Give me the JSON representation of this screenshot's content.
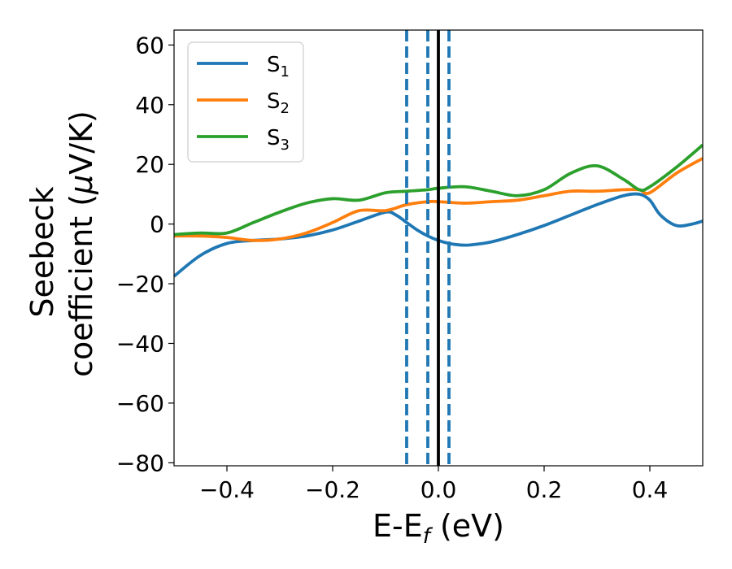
{
  "chart_data": {
    "type": "line",
    "xlabel": {
      "main": "E-E",
      "sub": "f",
      "rest": " (eV)"
    },
    "ylabel": {
      "line1": "Seebeck",
      "line2_pre": "coefficient  (",
      "mu": "μ",
      "line2_post": "V/K)"
    },
    "xlim": [
      -0.5,
      0.5
    ],
    "ylim": [
      -81,
      65
    ],
    "xticks": [
      -0.4,
      -0.2,
      0.0,
      0.2,
      0.4
    ],
    "xtick_labels": [
      "−0.4",
      "−0.2",
      "0.0",
      "0.2",
      "0.4"
    ],
    "yticks": [
      -80,
      -60,
      -40,
      -20,
      0,
      20,
      40,
      60
    ],
    "ytick_labels": [
      "−80",
      "−60",
      "−40",
      "−20",
      "0",
      "20",
      "40",
      "60"
    ],
    "legend_position": "top-left",
    "series": [
      {
        "name": "S",
        "subscript": "1",
        "color": "#1f77b4",
        "x": [
          -0.5,
          -0.45,
          -0.4,
          -0.35,
          -0.3,
          -0.25,
          -0.2,
          -0.15,
          -0.1,
          -0.08,
          -0.06,
          -0.04,
          -0.02,
          0.0,
          0.02,
          0.04,
          0.06,
          0.1,
          0.15,
          0.2,
          0.25,
          0.3,
          0.35,
          0.38,
          0.4,
          0.42,
          0.45,
          0.48,
          0.5
        ],
        "y": [
          -17.5,
          -10.5,
          -6.5,
          -5.5,
          -5.0,
          -4.0,
          -2.0,
          1.0,
          4.0,
          3.0,
          0.5,
          -2.0,
          -4.0,
          -5.5,
          -6.5,
          -7.0,
          -7.0,
          -6.0,
          -3.5,
          -0.5,
          3.0,
          6.5,
          9.5,
          10.0,
          8.0,
          3.0,
          -0.5,
          0.0,
          1.0
        ]
      },
      {
        "name": "S",
        "subscript": "2",
        "color": "#ff7f0e",
        "x": [
          -0.5,
          -0.45,
          -0.4,
          -0.35,
          -0.3,
          -0.25,
          -0.2,
          -0.15,
          -0.1,
          -0.06,
          -0.02,
          0.0,
          0.05,
          0.1,
          0.15,
          0.2,
          0.25,
          0.3,
          0.35,
          0.38,
          0.4,
          0.45,
          0.5
        ],
        "y": [
          -4.0,
          -4.0,
          -4.5,
          -5.5,
          -5.0,
          -3.0,
          0.5,
          4.5,
          4.5,
          6.5,
          7.5,
          7.5,
          7.0,
          7.5,
          8.0,
          9.5,
          11.0,
          11.0,
          11.5,
          11.5,
          10.5,
          17.0,
          22.0
        ]
      },
      {
        "name": "S",
        "subscript": "3",
        "color": "#2ca02c",
        "x": [
          -0.5,
          -0.45,
          -0.4,
          -0.35,
          -0.3,
          -0.25,
          -0.2,
          -0.15,
          -0.1,
          -0.06,
          -0.02,
          0.0,
          0.05,
          0.1,
          0.15,
          0.2,
          0.25,
          0.3,
          0.35,
          0.38,
          0.4,
          0.45,
          0.5
        ],
        "y": [
          -3.5,
          -3.0,
          -3.0,
          0.5,
          4.0,
          7.0,
          8.5,
          8.0,
          10.5,
          11.0,
          11.5,
          12.0,
          12.5,
          11.0,
          9.5,
          11.5,
          17.0,
          19.5,
          15.0,
          11.5,
          12.5,
          19.0,
          26.5
        ]
      }
    ],
    "vertical_lines": [
      {
        "x": -0.06,
        "style": "dashed",
        "color": "#1f77b4"
      },
      {
        "x": -0.02,
        "style": "dashed",
        "color": "#1f77b4"
      },
      {
        "x": 0.0,
        "style": "solid",
        "color": "#000000"
      },
      {
        "x": 0.02,
        "style": "dashed",
        "color": "#1f77b4"
      }
    ]
  }
}
